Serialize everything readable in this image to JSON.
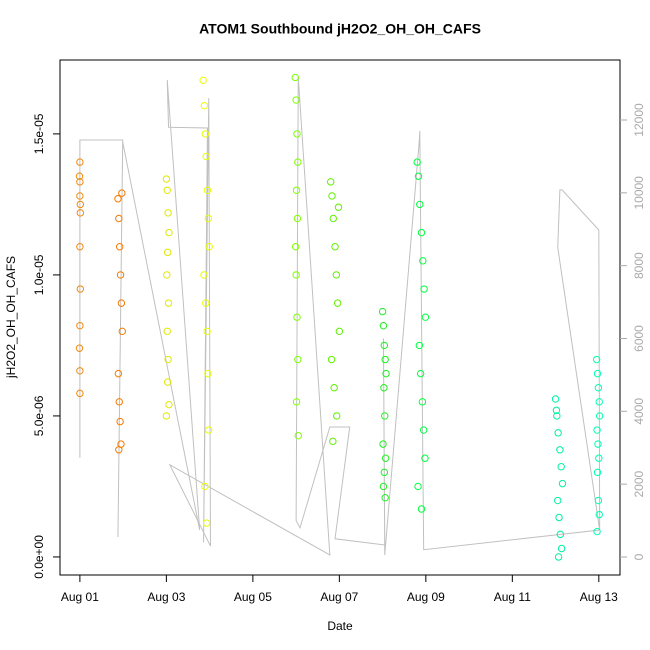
{
  "chart_data": {
    "type": "scatter",
    "title": "ATOM1 Southbound jH2O2_OH_OH_CAFS",
    "xlabel": "Date",
    "ylabel": "jH2O2_OH_OH_CAFS",
    "xlim": [
      0.54,
      13.49
    ],
    "ylim": [
      -6.4e-07,
      1.762e-05
    ],
    "y2lim": [
      -495,
      13648
    ],
    "xticks": [
      {
        "value": 1,
        "label": "Aug 01"
      },
      {
        "value": 3,
        "label": "Aug 03"
      },
      {
        "value": 5,
        "label": "Aug 05"
      },
      {
        "value": 7,
        "label": "Aug 07"
      },
      {
        "value": 9,
        "label": "Aug 09"
      },
      {
        "value": 11,
        "label": "Aug 11"
      },
      {
        "value": 13,
        "label": "Aug 13"
      }
    ],
    "yticks": [
      {
        "value": 0,
        "label": "0.0e+00"
      },
      {
        "value": 5e-06,
        "label": "5.0e-06"
      },
      {
        "value": 1e-05,
        "label": "1.0e-05"
      },
      {
        "value": 1.5e-05,
        "label": "1.5e-05"
      }
    ],
    "y2ticks": [
      0,
      2000,
      4000,
      6000,
      8000,
      10000,
      12000
    ],
    "series": [
      {
        "axis": "y2",
        "color": "#c0c0c0",
        "x": [
          1.0,
          1.0,
          1.99,
          1.88,
          1.99,
          3.77,
          3.02,
          3.05,
          3.95,
          3.86,
          3.98,
          4.02,
          3.08,
          6.78,
          6.05,
          6.0,
          6.09,
          6.78,
          7.24,
          6.9,
          8.05,
          8.02,
          8.05,
          8.85,
          8.86,
          8.95,
          13.02,
          12.05,
          12.1,
          12.15,
          13.0,
          13.02
        ],
        "values": [
          2720,
          11450,
          11450,
          550,
          11400,
          740,
          13100,
          11800,
          11780,
          400,
          12600,
          300,
          2530,
          55,
          13180,
          1000,
          800,
          3570,
          3570,
          500,
          330,
          6000,
          55,
          11450,
          11700,
          200,
          740,
          8500,
          10080,
          10080,
          8980,
          740
        ]
      },
      {
        "color": "#f08a10",
        "x": [
          1.0,
          1.0,
          1.01,
          0.99,
          1.0,
          1.0,
          1.01,
          1.0,
          0.99,
          1.0,
          1.0,
          1.01
        ],
        "values": [
          1.33e-05,
          1.28e-05,
          1.22e-05,
          1.35e-05,
          1.4e-05,
          1.1e-05,
          9.5e-06,
          8.2e-06,
          7.4e-06,
          6.6e-06,
          5.8e-06,
          1.25e-05
        ]
      },
      {
        "color": "#f57a00",
        "x": [
          1.88,
          1.9,
          1.92,
          1.94,
          1.96,
          1.98,
          1.89,
          1.91,
          1.93,
          1.95,
          1.97,
          1.9
        ],
        "values": [
          1.27e-05,
          1.2e-05,
          1.1e-05,
          1e-05,
          9e-06,
          8e-06,
          6.5e-06,
          5.5e-06,
          4.8e-06,
          4e-06,
          1.29e-05,
          3.8e-06
        ]
      },
      {
        "color": "#e0e800",
        "x": [
          3.0,
          3.02,
          3.04,
          3.06,
          3.03,
          3.01,
          3.05,
          3.02,
          3.04,
          3.03,
          3.06,
          3.0
        ],
        "values": [
          1.34e-05,
          1.3e-05,
          1.22e-05,
          1.15e-05,
          1.08e-05,
          1e-05,
          9e-06,
          8e-06,
          7e-06,
          6.2e-06,
          5.4e-06,
          5e-06
        ]
      },
      {
        "color": "#e8ff00",
        "x": [
          3.85,
          3.88,
          3.9,
          3.92,
          3.95,
          3.97,
          3.99,
          3.87,
          3.91,
          3.94,
          3.96,
          3.98,
          3.89,
          3.93
        ],
        "values": [
          1.69e-05,
          1.6e-05,
          1.5e-05,
          1.42e-05,
          1.3e-05,
          1.2e-05,
          1.1e-05,
          1e-05,
          9e-06,
          8e-06,
          6.5e-06,
          4.5e-06,
          2.5e-06,
          1.2e-06
        ]
      },
      {
        "color": "#80ff00",
        "x": [
          5.98,
          6.0,
          6.02,
          6.04,
          6.01,
          6.03,
          5.99,
          6.0,
          6.02,
          6.04,
          6.01,
          6.05
        ],
        "values": [
          1.7e-05,
          1.62e-05,
          1.5e-05,
          1.4e-05,
          1.3e-05,
          1.2e-05,
          1.1e-05,
          1e-05,
          8.5e-06,
          7e-06,
          5.5e-06,
          4.3e-06
        ]
      },
      {
        "color": "#60f000",
        "x": [
          6.8,
          6.83,
          6.86,
          6.9,
          6.93,
          6.96,
          7.0,
          6.82,
          6.88,
          6.94,
          6.98,
          6.85
        ],
        "values": [
          1.33e-05,
          1.28e-05,
          1.2e-05,
          1.1e-05,
          1e-05,
          9e-06,
          8e-06,
          7e-06,
          6e-06,
          5e-06,
          1.24e-05,
          4.1e-06
        ]
      },
      {
        "color": "#20f020",
        "x": [
          8.0,
          8.02,
          8.04,
          8.06,
          8.08,
          8.03,
          8.05,
          8.01,
          8.07,
          8.04,
          8.02,
          8.06
        ],
        "values": [
          8.7e-06,
          8.2e-06,
          7.5e-06,
          7e-06,
          6.5e-06,
          6e-06,
          5e-06,
          4e-06,
          3.5e-06,
          3e-06,
          2.5e-06,
          2.1e-06
        ]
      },
      {
        "color": "#00ff40",
        "x": [
          8.8,
          8.83,
          8.86,
          8.9,
          8.93,
          8.96,
          8.99,
          8.85,
          8.88,
          8.92,
          8.95,
          8.98,
          8.82,
          8.9
        ],
        "values": [
          1.4e-05,
          1.35e-05,
          1.25e-05,
          1.15e-05,
          1.05e-05,
          9.5e-06,
          8.5e-06,
          7.5e-06,
          6.5e-06,
          5.5e-06,
          4.5e-06,
          3.5e-06,
          2.5e-06,
          1.7e-06
        ]
      },
      {
        "color": "#00f0a0",
        "x": [
          12.0,
          12.03,
          12.06,
          12.1,
          12.13,
          12.16,
          12.05,
          12.08,
          12.11,
          12.14,
          12.02,
          12.07
        ],
        "values": [
          5.6e-06,
          5e-06,
          4.4e-06,
          3.8e-06,
          3.2e-06,
          2.6e-06,
          2e-06,
          1.4e-06,
          8e-07,
          3e-07,
          5.2e-06,
          0
        ]
      },
      {
        "color": "#00ffb0",
        "x": [
          12.95,
          12.97,
          12.99,
          13.01,
          13.02,
          12.96,
          12.98,
          13.0,
          12.97,
          12.99,
          13.01,
          12.96
        ],
        "values": [
          7e-06,
          6.5e-06,
          6e-06,
          5.5e-06,
          5e-06,
          4.5e-06,
          4e-06,
          3.5e-06,
          3e-06,
          2e-06,
          1.5e-06,
          9e-07
        ]
      }
    ]
  }
}
